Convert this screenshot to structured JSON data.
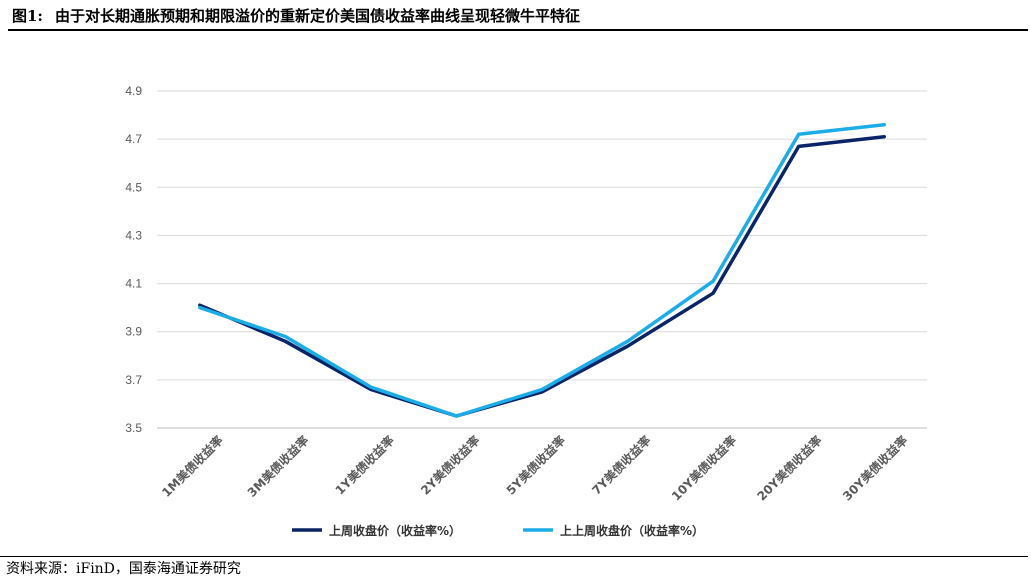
{
  "figure": {
    "label": "图1:",
    "title": "由于对长期通胀预期和期限溢价的重新定价美国债收益率曲线呈现轻微牛平特征"
  },
  "source": "资料来源：iFinD，国泰海通证券研究",
  "colors": {
    "series1": "#0A2467",
    "series2": "#1AADE8",
    "grid": "#D9D9D9",
    "axis_text": "#595959"
  },
  "chart_data": {
    "type": "line",
    "title": "",
    "xlabel": "",
    "ylabel": "",
    "categories": [
      "1M美债收益率",
      "3M美债收益率",
      "1Y美债收益率",
      "2Y美债收益率",
      "5Y美债收益率",
      "7Y美债收益率",
      "10Y美债收益率",
      "20Y美债收益率",
      "30Y美债收益率"
    ],
    "ylim": [
      3.5,
      4.9
    ],
    "yticks": [
      "3.5",
      "3.7",
      "3.9",
      "4.1",
      "4.3",
      "4.5",
      "4.7",
      "4.9"
    ],
    "grid": "horizontal",
    "legend_position": "bottom",
    "series": [
      {
        "name": "上周收盘价（收益率%）",
        "values": [
          4.01,
          3.86,
          3.66,
          3.55,
          3.65,
          3.84,
          4.06,
          4.67,
          4.71
        ]
      },
      {
        "name": "上上周收盘价（收益率%）",
        "values": [
          4.0,
          3.88,
          3.67,
          3.55,
          3.66,
          3.86,
          4.11,
          4.72,
          4.76
        ]
      }
    ]
  }
}
